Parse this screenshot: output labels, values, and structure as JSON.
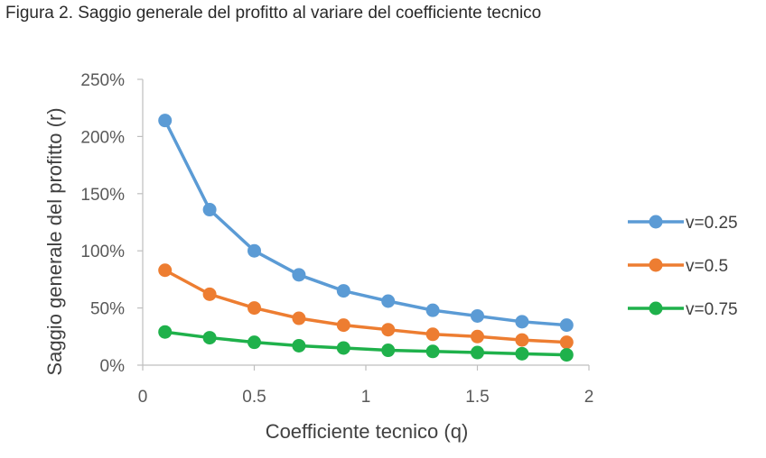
{
  "chart_data": {
    "type": "line",
    "title": "Figura 2. Saggio generale del profitto al variare del coefficiente tecnico",
    "xlabel": "Coefficiente tecnico (q)",
    "ylabel": "Saggio generale del profitto (r)",
    "xlim": [
      0,
      2
    ],
    "ylim": [
      0,
      250
    ],
    "x_ticks": [
      "0",
      "0.5",
      "1",
      "1.5",
      "2"
    ],
    "y_ticks": [
      "0%",
      "50%",
      "100%",
      "150%",
      "200%",
      "250%"
    ],
    "y_unit": "%",
    "grid": false,
    "legend_position": "right",
    "x": [
      0.1,
      0.3,
      0.5,
      0.7,
      0.9,
      1.1,
      1.3,
      1.5,
      1.7,
      1.9
    ],
    "series": [
      {
        "name": "v=0.25",
        "color": "#5b9bd5",
        "values": [
          214,
          136,
          100,
          79,
          65,
          56,
          48,
          43,
          38,
          35
        ]
      },
      {
        "name": "v=0.5",
        "color": "#ed7d31",
        "values": [
          83,
          62,
          50,
          41,
          35,
          31,
          27,
          25,
          22,
          20
        ]
      },
      {
        "name": "v=0.75",
        "color": "#1fb14b",
        "values": [
          29,
          24,
          20,
          17,
          15,
          13,
          12,
          11,
          10,
          9
        ]
      }
    ]
  }
}
